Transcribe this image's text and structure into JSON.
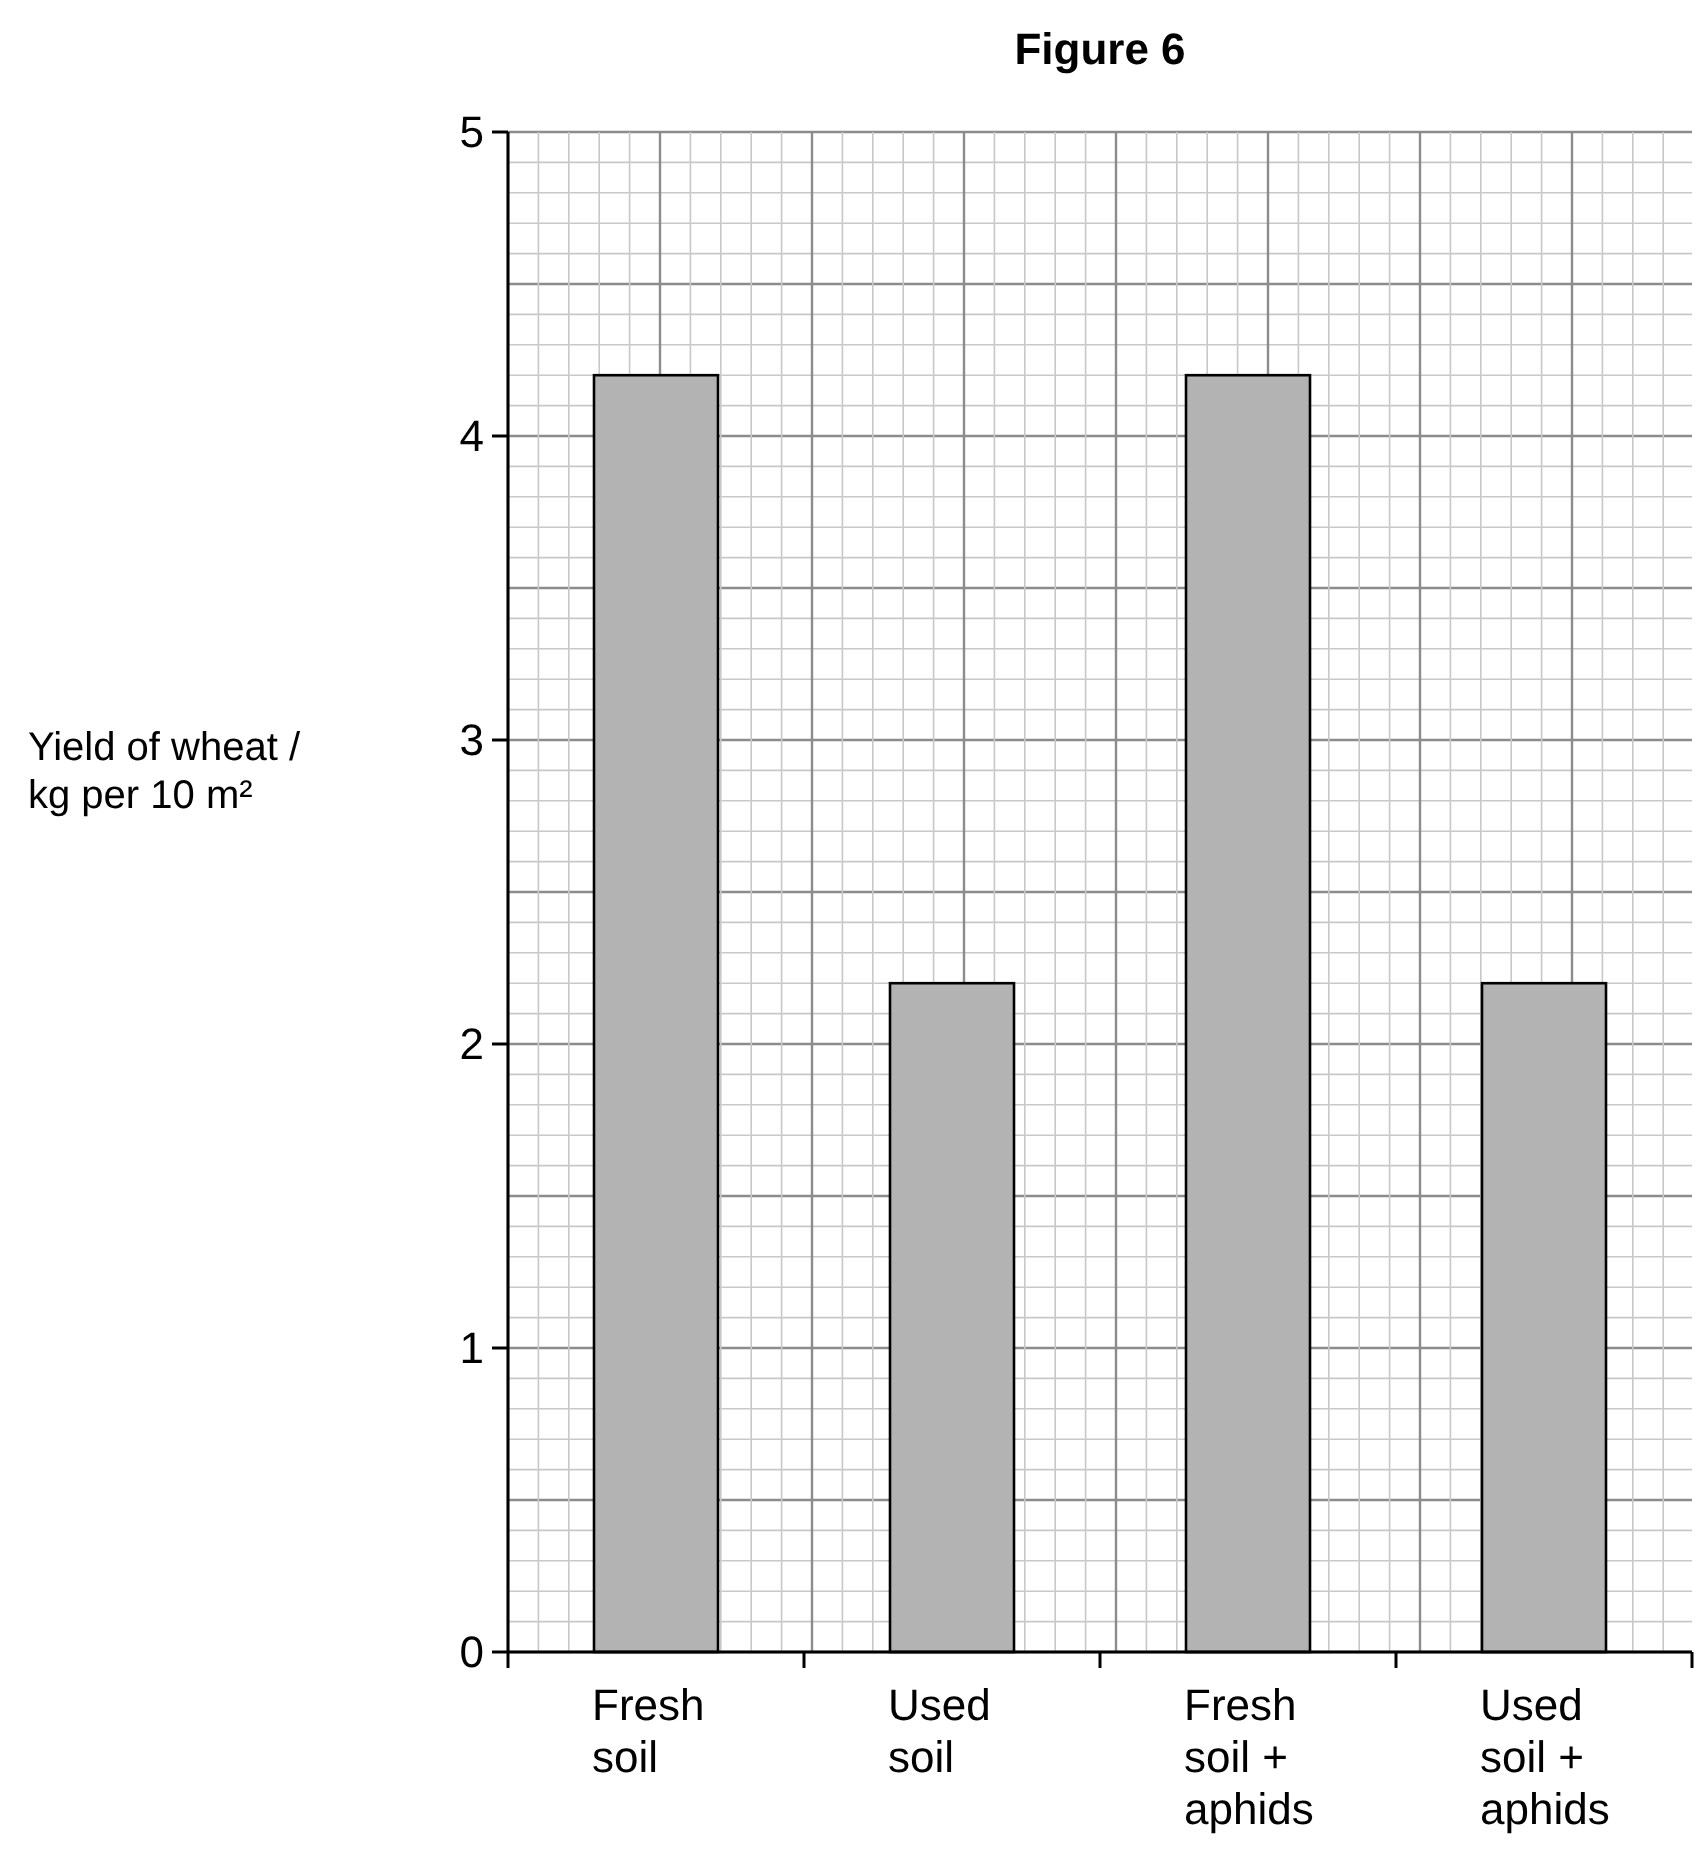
{
  "chart_data": {
    "type": "bar",
    "title": "Figure 6",
    "ylabel": "Yield of wheat /\nkg per 10 m²",
    "categories": [
      "Fresh soil",
      "Used soil",
      "Fresh soil + aphids",
      "Used soil + aphids"
    ],
    "values": [
      4.2,
      2.2,
      4.2,
      2.2
    ],
    "color": "#b3b3b3",
    "ylim": [
      0,
      5
    ],
    "yticks": [
      0,
      1,
      2,
      3,
      4,
      5
    ],
    "grid": true
  }
}
